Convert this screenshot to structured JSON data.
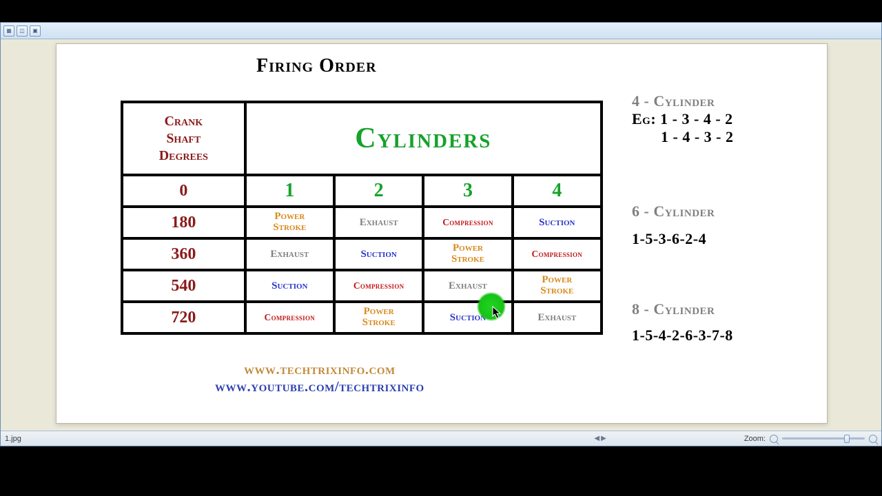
{
  "title": "Firing Order",
  "table": {
    "header_deg": "Crank\nShaft\nDegrees",
    "header_cyl": "Cylinders",
    "cyl_nums": [
      "1",
      "2",
      "3",
      "4"
    ],
    "rows": [
      {
        "deg": "0",
        "cells": [
          {
            "t": "1",
            "c": "cylnum"
          },
          {
            "t": "2",
            "c": "cylnum"
          },
          {
            "t": "3",
            "c": "cylnum"
          },
          {
            "t": "4",
            "c": "cylnum"
          }
        ]
      },
      {
        "deg": "180",
        "cells": [
          {
            "t": "Power\nStroke",
            "c": "power"
          },
          {
            "t": "Exhaust",
            "c": "exhaust"
          },
          {
            "t": "Compression",
            "c": "comp"
          },
          {
            "t": "Suction",
            "c": "suction"
          }
        ]
      },
      {
        "deg": "360",
        "cells": [
          {
            "t": "Exhaust",
            "c": "exhaust"
          },
          {
            "t": "Suction",
            "c": "suction"
          },
          {
            "t": "Power\nStroke",
            "c": "power"
          },
          {
            "t": "Compression",
            "c": "comp"
          }
        ]
      },
      {
        "deg": "540",
        "cells": [
          {
            "t": "Suction",
            "c": "suction"
          },
          {
            "t": "Compression",
            "c": "comp"
          },
          {
            "t": "Exhaust",
            "c": "exhaust"
          },
          {
            "t": "Power\nStroke",
            "c": "power"
          }
        ]
      },
      {
        "deg": "720",
        "cells": [
          {
            "t": "Compression",
            "c": "comp"
          },
          {
            "t": "Power\nStroke",
            "c": "power"
          },
          {
            "t": "Suction",
            "c": "suction"
          },
          {
            "t": "Exhaust",
            "c": "exhaust"
          }
        ]
      }
    ]
  },
  "links": {
    "l1": "www.techtrixinfo.com",
    "l2": "www.youtube.com/techtrixinfo"
  },
  "side": {
    "s4h": "4 - Cylinder",
    "s4a": "Eg: 1 - 3 - 4 - 2",
    "s4b": "1 - 4 - 3 - 2",
    "s6h": "6 - Cylinder",
    "s6a": "1-5-3-6-2-4",
    "s8h": "8 - Cylinder",
    "s8a": "1-5-4-2-6-3-7-8"
  },
  "status": {
    "file": "1.jpg",
    "zoom_label": "Zoom:"
  }
}
